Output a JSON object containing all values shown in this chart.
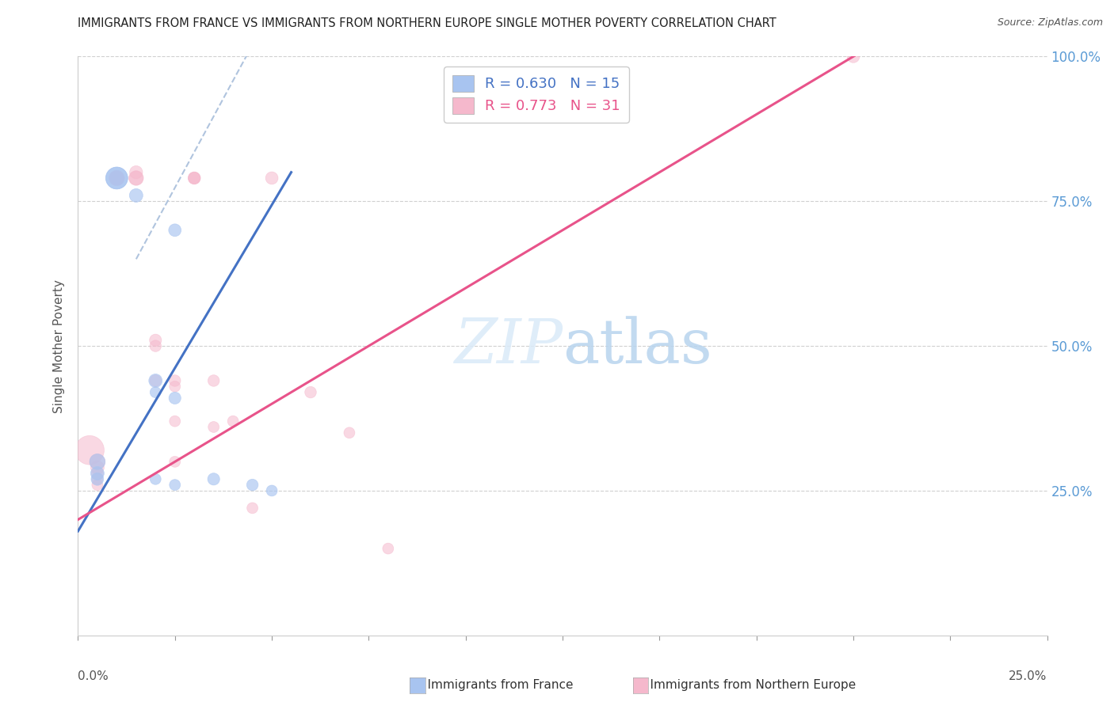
{
  "title": "IMMIGRANTS FROM FRANCE VS IMMIGRANTS FROM NORTHERN EUROPE SINGLE MOTHER POVERTY CORRELATION CHART",
  "source": "Source: ZipAtlas.com",
  "ylabel": "Single Mother Poverty",
  "legend_france": {
    "R": 0.63,
    "N": 15,
    "label": "Immigrants from France"
  },
  "legend_northern": {
    "R": 0.773,
    "N": 31,
    "label": "Immigrants from Northern Europe"
  },
  "color_france": "#a8c4f0",
  "color_northern": "#f5b8cc",
  "color_france_line": "#4472c4",
  "color_northern_line": "#e8538a",
  "color_dashed": "#b0c4de",
  "background": "#ffffff",
  "france_points": [
    [
      0.5,
      30
    ],
    [
      0.5,
      28
    ],
    [
      0.5,
      27
    ],
    [
      1.0,
      79
    ],
    [
      1.0,
      79
    ],
    [
      1.5,
      76
    ],
    [
      2.0,
      44
    ],
    [
      2.0,
      42
    ],
    [
      2.0,
      27
    ],
    [
      2.5,
      70
    ],
    [
      2.5,
      41
    ],
    [
      2.5,
      26
    ],
    [
      3.5,
      27
    ],
    [
      4.5,
      26
    ],
    [
      5.0,
      25
    ]
  ],
  "france_sizes": [
    200,
    150,
    130,
    400,
    400,
    150,
    150,
    100,
    100,
    130,
    120,
    100,
    120,
    110,
    100
  ],
  "northern_points": [
    [
      0.3,
      32
    ],
    [
      0.5,
      30
    ],
    [
      0.5,
      29
    ],
    [
      0.5,
      28
    ],
    [
      0.5,
      27
    ],
    [
      0.5,
      26
    ],
    [
      1.0,
      79
    ],
    [
      1.0,
      79
    ],
    [
      1.0,
      79
    ],
    [
      1.5,
      79
    ],
    [
      1.5,
      79
    ],
    [
      1.5,
      80
    ],
    [
      2.0,
      51
    ],
    [
      2.0,
      50
    ],
    [
      2.0,
      44
    ],
    [
      2.5,
      44
    ],
    [
      2.5,
      43
    ],
    [
      2.5,
      37
    ],
    [
      2.5,
      30
    ],
    [
      3.0,
      79
    ],
    [
      3.0,
      79
    ],
    [
      3.0,
      79
    ],
    [
      3.5,
      44
    ],
    [
      3.5,
      36
    ],
    [
      4.0,
      37
    ],
    [
      4.5,
      22
    ],
    [
      5.0,
      79
    ],
    [
      6.0,
      42
    ],
    [
      7.0,
      35
    ],
    [
      8.0,
      15
    ],
    [
      20.0,
      100
    ]
  ],
  "northern_sizes": [
    700,
    200,
    150,
    120,
    100,
    100,
    200,
    180,
    160,
    180,
    160,
    140,
    120,
    110,
    110,
    110,
    100,
    100,
    100,
    130,
    120,
    110,
    110,
    100,
    100,
    100,
    130,
    110,
    100,
    100,
    130
  ],
  "xlim": [
    0,
    25
  ],
  "ylim": [
    0,
    100
  ],
  "xticks": [
    0,
    2.5,
    5.0,
    7.5,
    10.0,
    12.5,
    15.0,
    17.5,
    20.0,
    22.5,
    25.0
  ],
  "yticks": [
    25,
    50,
    75,
    100
  ],
  "france_line": {
    "x0": 0.0,
    "y0": 18,
    "x1": 5.5,
    "y1": 80
  },
  "northern_line": {
    "x0": 0.0,
    "y0": 20,
    "x1": 20.5,
    "y1": 102
  },
  "dashed_line": {
    "x0": 1.5,
    "y0": 65,
    "x1": 4.5,
    "y1": 102
  }
}
